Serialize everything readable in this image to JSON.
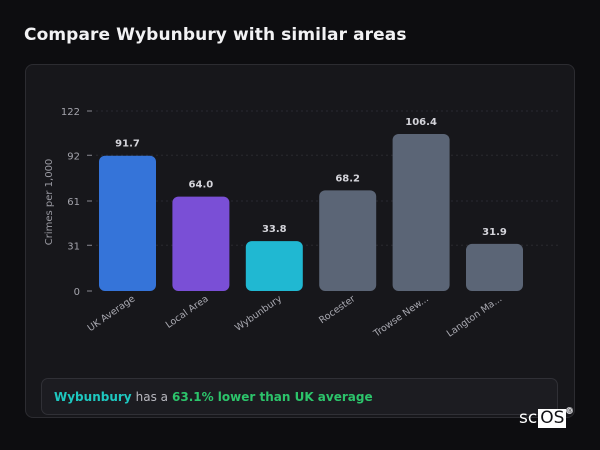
{
  "header": {
    "title": "Compare Wybunbury with similar areas"
  },
  "chart_data": {
    "type": "bar",
    "title": "Compare Wybunbury with similar areas",
    "xlabel": "",
    "ylabel": "Crimes per 1,000",
    "categories": [
      "UK Average",
      "Local Area",
      "Wybunbury",
      "Rocester",
      "Trowse New...",
      "Langton Ma..."
    ],
    "values": [
      91.7,
      64.0,
      33.8,
      68.2,
      106.4,
      31.9
    ],
    "value_labels": [
      "91.7",
      "64.0",
      "33.8",
      "68.2",
      "106.4",
      "31.9"
    ],
    "colors": [
      "#3574d9",
      "#7a4fd6",
      "#20b8d2",
      "#5b6576",
      "#5b6576",
      "#5b6576"
    ],
    "yticks": [
      0,
      31,
      61,
      92,
      122
    ],
    "ylim": [
      0,
      122
    ],
    "grid": true,
    "legend": null
  },
  "summary": {
    "area": "Wybunbury",
    "connector": "has a",
    "statement": "63.1% lower than UK average"
  },
  "logo": {
    "part1": "sc",
    "part2": "OS",
    "mark": "®"
  }
}
